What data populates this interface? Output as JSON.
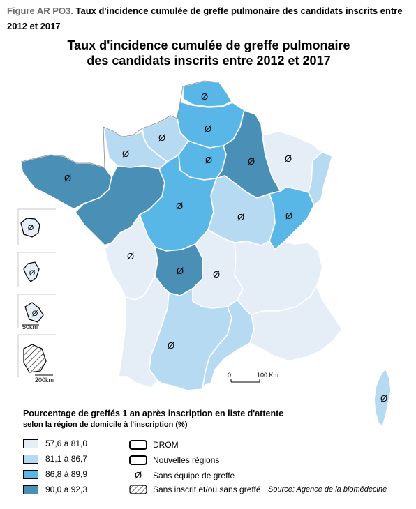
{
  "caption": {
    "prefix": "Figure AR PO3.",
    "text": "Taux d'incidence cumulée de greffe pulmonaire des candidats inscrits entre 2012 et 2017"
  },
  "map_title": {
    "line1": "Taux d'incidence cumulée de greffe pulmonaire",
    "line2": "des candidats inscrits entre 2012 et 2017"
  },
  "colors": {
    "class1": "#e5eef7",
    "class2": "#b7daf3",
    "class3": "#58b7e7",
    "class4": "#4a8fb5",
    "border": "#ffffff"
  },
  "regions": [
    {
      "name": "Nord-Pas-de-Calais",
      "class": 3
    },
    {
      "name": "Picardie",
      "class": 3
    },
    {
      "name": "Haute-Normandie",
      "class": 2
    },
    {
      "name": "Basse-Normandie",
      "class": 2
    },
    {
      "name": "Bretagne",
      "class": 4
    },
    {
      "name": "Pays de la Loire",
      "class": 4
    },
    {
      "name": "Ile-de-France",
      "class": 3
    },
    {
      "name": "Centre",
      "class": 3
    },
    {
      "name": "Champagne-Ardenne",
      "class": 4
    },
    {
      "name": "Lorraine",
      "class": 1
    },
    {
      "name": "Alsace",
      "class": 2
    },
    {
      "name": "Bourgogne",
      "class": 2
    },
    {
      "name": "Franche-Comté",
      "class": 3
    },
    {
      "name": "Poitou-Charentes",
      "class": 1
    },
    {
      "name": "Limousin",
      "class": 4
    },
    {
      "name": "Auvergne",
      "class": 1
    },
    {
      "name": "Rhône-Alpes",
      "class": 1
    },
    {
      "name": "Aquitaine",
      "class": 1
    },
    {
      "name": "Midi-Pyrénées",
      "class": 2
    },
    {
      "name": "Languedoc-Roussillon",
      "class": 2
    },
    {
      "name": "Provence-Alpes-Côte d'Azur",
      "class": 1
    },
    {
      "name": "Corse",
      "class": 2
    }
  ],
  "scale_bar": {
    "zero": "0",
    "distance": "100 Km"
  },
  "inset_scales": {
    "small": "50km",
    "large": "200km"
  },
  "legend": {
    "title": "Pourcentage de greffés 1 an après inscription en liste d'attente",
    "subtitle": "selon la région de domicile à l'inscription (%)",
    "classes": [
      {
        "label": "57,6 à 81,0",
        "color": "#e5eef7"
      },
      {
        "label": "81,1 à 86,7",
        "color": "#b7daf3"
      },
      {
        "label": "86,8 à 89,9",
        "color": "#58b7e7"
      },
      {
        "label": "90,0 à 92,3",
        "color": "#4a8fb5"
      }
    ],
    "symbols": [
      {
        "label": "DROM",
        "icon": "rounded-box-icon"
      },
      {
        "label": "Nouvelles régions",
        "icon": "rounded-box-icon"
      },
      {
        "label": "Sans équipe de greffe",
        "icon": "no-team-symbol"
      },
      {
        "label": "Sans inscrit et/ou sans greffé",
        "icon": "hatched-icon"
      }
    ]
  },
  "source": "Source: Agence de la biomédecine"
}
